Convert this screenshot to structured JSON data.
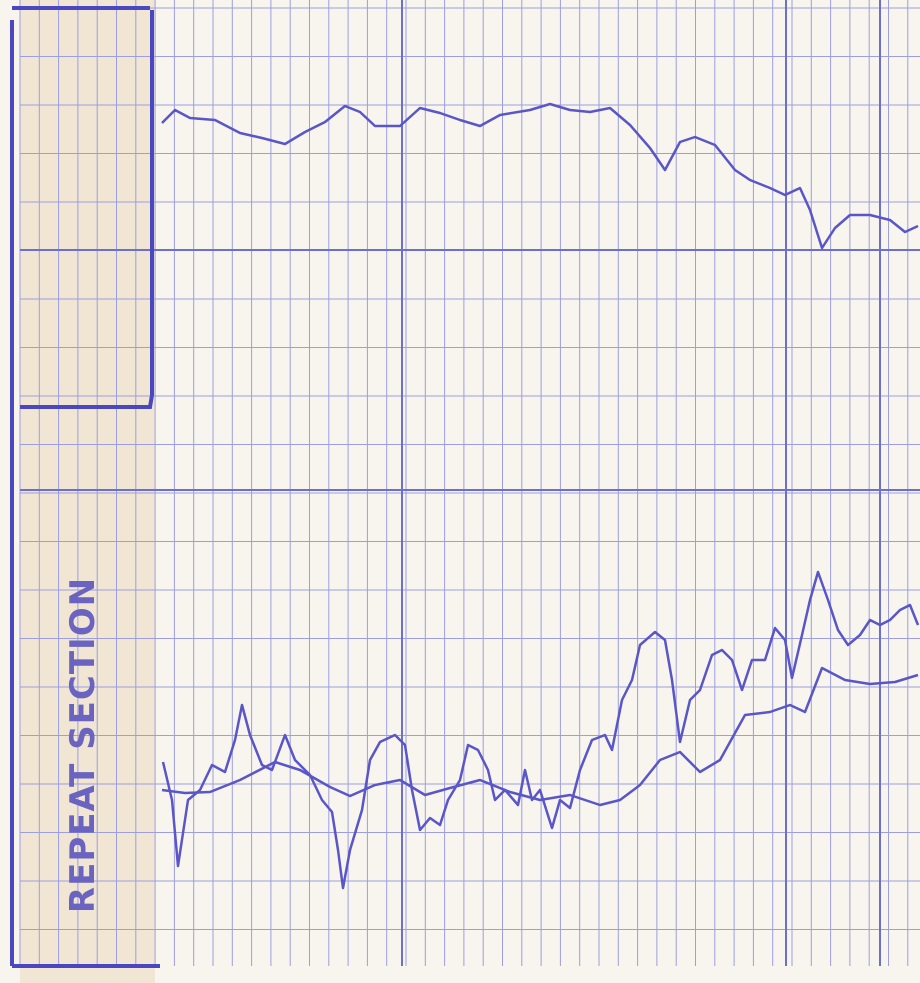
{
  "label": "REPEAT SECTION"
}
